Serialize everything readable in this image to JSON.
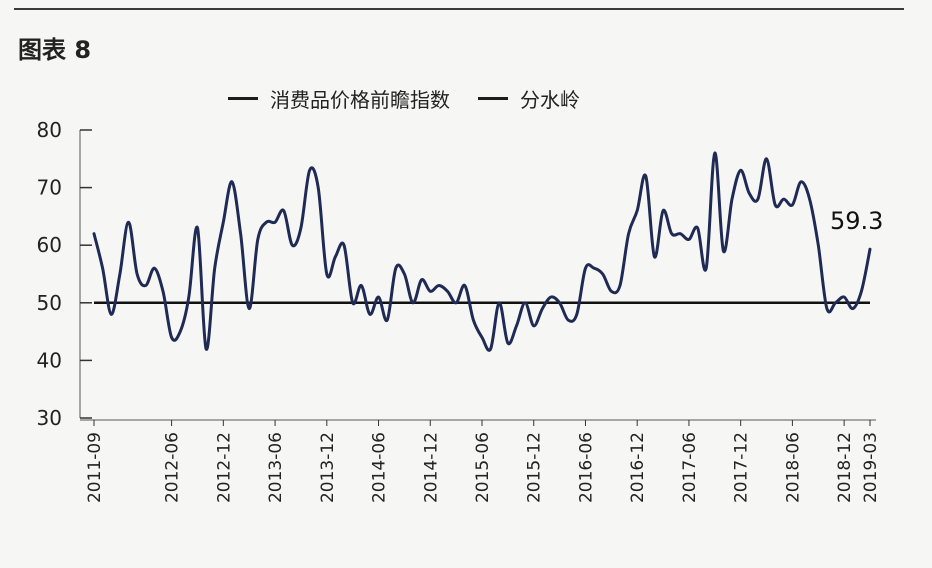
{
  "figure": {
    "label": "图表 8"
  },
  "chart_data": {
    "type": "line",
    "legend": {
      "placement": "top",
      "entries": [
        "消费品价格前瞻指数",
        "分水岭"
      ]
    },
    "y_ticks": [
      30,
      40,
      50,
      60,
      70,
      80
    ],
    "ylim": [
      30,
      80
    ],
    "x_tick_labels": [
      "2011-09",
      "2012-06",
      "2012-12",
      "2013-06",
      "2013-12",
      "2014-06",
      "2014-12",
      "2015-06",
      "2015-12",
      "2016-06",
      "2016-12",
      "2017-06",
      "2017-12",
      "2018-06",
      "2018-12",
      "2019-03"
    ],
    "x_range": [
      "2011-09",
      "2019-03"
    ],
    "series": [
      {
        "name": "消费品价格前瞻指数",
        "color": "#1f2a55",
        "points": [
          [
            "2011-09",
            62
          ],
          [
            "2011-10",
            56
          ],
          [
            "2011-11",
            48
          ],
          [
            "2011-12",
            55
          ],
          [
            "2012-01",
            64
          ],
          [
            "2012-02",
            55
          ],
          [
            "2012-03",
            53
          ],
          [
            "2012-04",
            56
          ],
          [
            "2012-05",
            52
          ],
          [
            "2012-06",
            44
          ],
          [
            "2012-07",
            45
          ],
          [
            "2012-08",
            51
          ],
          [
            "2012-09",
            63
          ],
          [
            "2012-10",
            42
          ],
          [
            "2012-11",
            56
          ],
          [
            "2012-12",
            64
          ],
          [
            "2013-01",
            71
          ],
          [
            "2013-02",
            62
          ],
          [
            "2013-03",
            49
          ],
          [
            "2013-04",
            61
          ],
          [
            "2013-05",
            64
          ],
          [
            "2013-06",
            64
          ],
          [
            "2013-07",
            66
          ],
          [
            "2013-08",
            60
          ],
          [
            "2013-09",
            63
          ],
          [
            "2013-10",
            73
          ],
          [
            "2013-11",
            70
          ],
          [
            "2013-12",
            55
          ],
          [
            "2014-01",
            58
          ],
          [
            "2014-02",
            60
          ],
          [
            "2014-03",
            50
          ],
          [
            "2014-04",
            53
          ],
          [
            "2014-05",
            48
          ],
          [
            "2014-06",
            51
          ],
          [
            "2014-07",
            47
          ],
          [
            "2014-08",
            56
          ],
          [
            "2014-09",
            55
          ],
          [
            "2014-10",
            50
          ],
          [
            "2014-11",
            54
          ],
          [
            "2014-12",
            52
          ],
          [
            "2015-01",
            53
          ],
          [
            "2015-02",
            52
          ],
          [
            "2015-03",
            50
          ],
          [
            "2015-04",
            53
          ],
          [
            "2015-05",
            47
          ],
          [
            "2015-06",
            44
          ],
          [
            "2015-07",
            42
          ],
          [
            "2015-08",
            50
          ],
          [
            "2015-09",
            43
          ],
          [
            "2015-10",
            46
          ],
          [
            "2015-11",
            50
          ],
          [
            "2015-12",
            46
          ],
          [
            "2016-01",
            49
          ],
          [
            "2016-02",
            51
          ],
          [
            "2016-03",
            50
          ],
          [
            "2016-04",
            47
          ],
          [
            "2016-05",
            48
          ],
          [
            "2016-06",
            56
          ],
          [
            "2016-07",
            56
          ],
          [
            "2016-08",
            55
          ],
          [
            "2016-09",
            52
          ],
          [
            "2016-10",
            53
          ],
          [
            "2016-11",
            62
          ],
          [
            "2016-12",
            66
          ],
          [
            "2017-01",
            72
          ],
          [
            "2017-02",
            58
          ],
          [
            "2017-03",
            66
          ],
          [
            "2017-04",
            62
          ],
          [
            "2017-05",
            62
          ],
          [
            "2017-06",
            61
          ],
          [
            "2017-07",
            63
          ],
          [
            "2017-08",
            56
          ],
          [
            "2017-09",
            76
          ],
          [
            "2017-10",
            59
          ],
          [
            "2017-11",
            68
          ],
          [
            "2017-12",
            73
          ],
          [
            "2018-01",
            69
          ],
          [
            "2018-02",
            68
          ],
          [
            "2018-03",
            75
          ],
          [
            "2018-04",
            67
          ],
          [
            "2018-05",
            68
          ],
          [
            "2018-06",
            67
          ],
          [
            "2018-07",
            71
          ],
          [
            "2018-08",
            68
          ],
          [
            "2018-09",
            60
          ],
          [
            "2018-10",
            49
          ],
          [
            "2018-11",
            50
          ],
          [
            "2018-12",
            51
          ],
          [
            "2019-01",
            49
          ],
          [
            "2019-02",
            52
          ],
          [
            "2019-03",
            59.3
          ]
        ]
      },
      {
        "name": "分水岭",
        "color": "#111111",
        "points": [
          [
            "2011-09",
            50
          ],
          [
            "2019-03",
            50
          ]
        ]
      }
    ],
    "annotations": [
      {
        "text": "59.3",
        "x": "2019-03",
        "y": 59.3
      }
    ],
    "grid": false
  }
}
